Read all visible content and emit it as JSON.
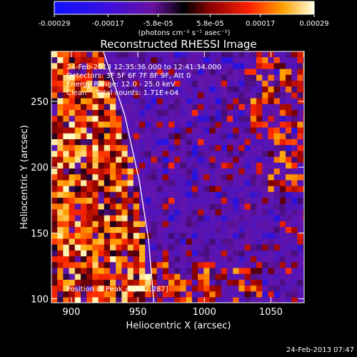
{
  "chart_data": {
    "type": "heatmap",
    "title": "Reconstructed RHESSI Image",
    "xlabel": "Heliocentric X (arcsec)",
    "ylabel": "Heliocentric Y (arcsec)",
    "xlim": [
      885,
      1075
    ],
    "ylim": [
      97,
      288
    ],
    "x_ticks": [
      900,
      950,
      1000,
      1050
    ],
    "y_ticks": [
      100,
      150,
      200,
      250
    ],
    "colorbar": {
      "range": [
        -0.00029,
        0.00029
      ],
      "tick_values": [
        -0.00029,
        -0.00017,
        -5.8e-05,
        5.8e-05,
        0.00017,
        0.00029
      ],
      "tick_labels": [
        "-0.00029",
        "-0.00017",
        "-5.8e-05",
        "5.8e-05",
        "0.00017",
        "0.00029"
      ],
      "units_label": "(photons cm⁻² s⁻¹ asec⁻²)"
    },
    "annotations": {
      "time_range": "24-Feb-2013 12:35:36.000 to 12:41:34.000",
      "detectors": "Detectors: 3F 5F 6F 7F 8F 9F, Att 0",
      "energy_range": "Energy Range: 12.0 - 25.0 keV",
      "algorithm": "Clean    Total counts: 1.71E+04",
      "peak": "Position of Peak = [892,287]"
    },
    "limb_curve": [
      {
        "x": 924,
        "y": 288
      },
      {
        "x": 940,
        "y": 240
      },
      {
        "x": 951,
        "y": 190
      },
      {
        "x": 958,
        "y": 145
      },
      {
        "x": 962,
        "y": 97
      }
    ],
    "colors": {
      "background": "#000000",
      "axes": "#ffffff",
      "limb": "#ffffff"
    }
  },
  "footer": {
    "timestamp": "24-Feb-2013 07:47"
  }
}
